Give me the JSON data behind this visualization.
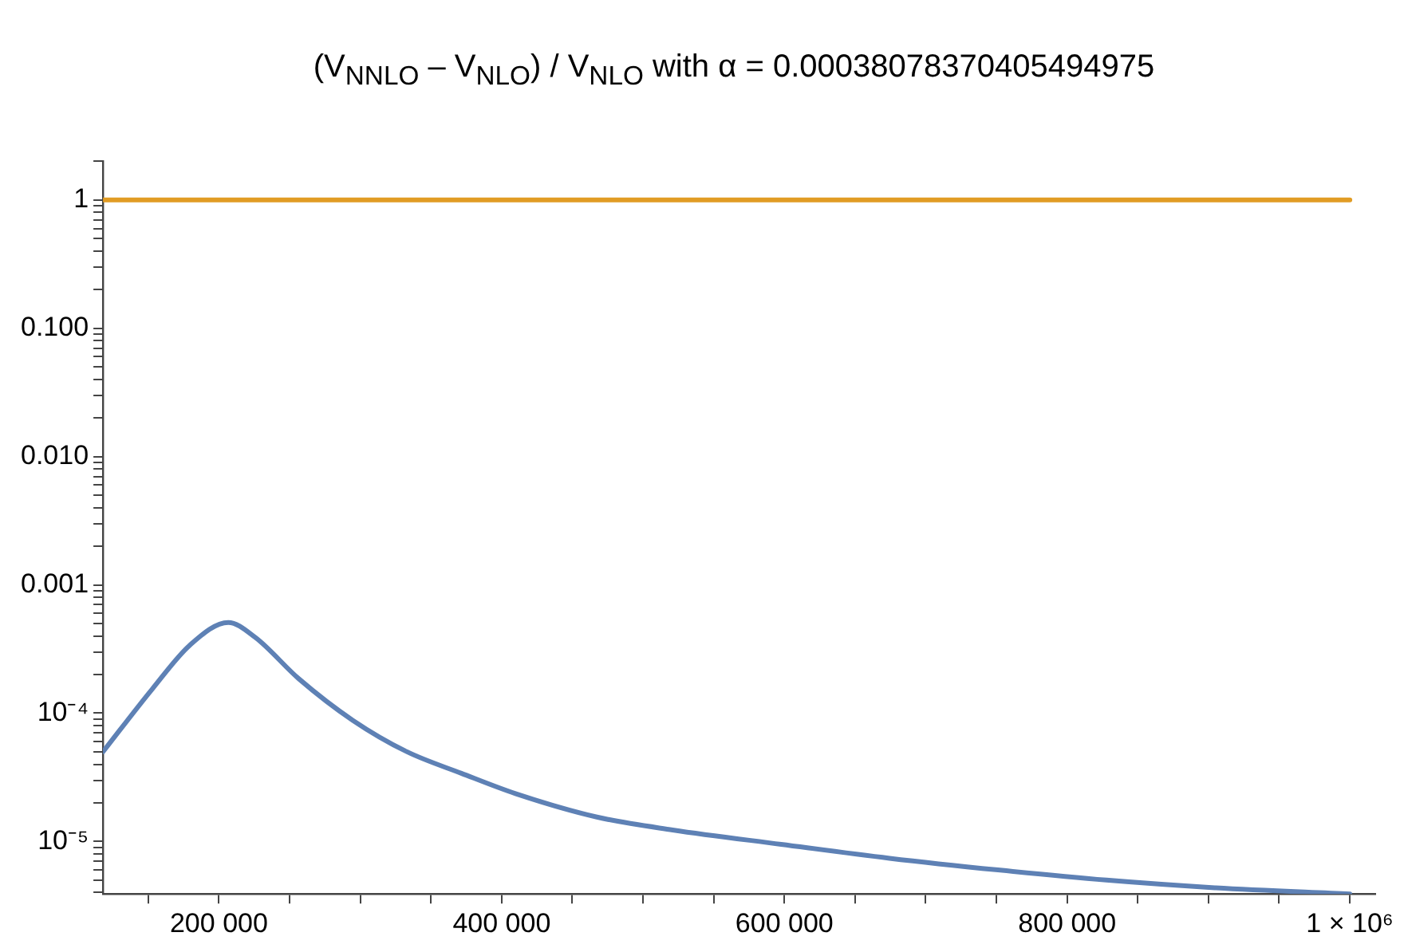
{
  "chart_data": {
    "type": "line",
    "title": "(V$_{NNLO}$ – V$_{NLO}$) / V$_{NLO}$ with α = 0.00038078370405494975",
    "log": "y",
    "grid": false,
    "legend": false,
    "marker": "none",
    "line_style": "solid",
    "xlim": [
      118000,
      1018000
    ],
    "ylim": [
      3.9e-06,
      2
    ],
    "xticks": [
      {
        "value": 150000,
        "label": null
      },
      {
        "value": 200000,
        "label": "200 000"
      },
      {
        "value": 250000,
        "label": null
      },
      {
        "value": 300000,
        "label": null
      },
      {
        "value": 350000,
        "label": null
      },
      {
        "value": 400000,
        "label": "400 000"
      },
      {
        "value": 450000,
        "label": null
      },
      {
        "value": 500000,
        "label": null
      },
      {
        "value": 550000,
        "label": null
      },
      {
        "value": 600000,
        "label": "600 000"
      },
      {
        "value": 650000,
        "label": null
      },
      {
        "value": 700000,
        "label": null
      },
      {
        "value": 750000,
        "label": null
      },
      {
        "value": 800000,
        "label": "800 000"
      },
      {
        "value": 850000,
        "label": null
      },
      {
        "value": 900000,
        "label": null
      },
      {
        "value": 950000,
        "label": null
      },
      {
        "value": 1000000,
        "label": "1 × 10⁶"
      }
    ],
    "yticks": [
      {
        "value": 4e-06,
        "label": null
      },
      {
        "value": 5e-06,
        "label": null
      },
      {
        "value": 6e-06,
        "label": null
      },
      {
        "value": 7e-06,
        "label": null
      },
      {
        "value": 8e-06,
        "label": null
      },
      {
        "value": 9e-06,
        "label": null
      },
      {
        "value": 1e-05,
        "label": "10⁻⁵"
      },
      {
        "value": 2e-05,
        "label": null
      },
      {
        "value": 3e-05,
        "label": null
      },
      {
        "value": 4e-05,
        "label": null
      },
      {
        "value": 5e-05,
        "label": null
      },
      {
        "value": 6e-05,
        "label": null
      },
      {
        "value": 7e-05,
        "label": null
      },
      {
        "value": 8e-05,
        "label": null
      },
      {
        "value": 9e-05,
        "label": null
      },
      {
        "value": 0.0001,
        "label": "10⁻⁴"
      },
      {
        "value": 0.0002,
        "label": null
      },
      {
        "value": 0.0003,
        "label": null
      },
      {
        "value": 0.0004,
        "label": null
      },
      {
        "value": 0.0005,
        "label": null
      },
      {
        "value": 0.0006,
        "label": null
      },
      {
        "value": 0.0007,
        "label": null
      },
      {
        "value": 0.0008,
        "label": null
      },
      {
        "value": 0.0009,
        "label": null
      },
      {
        "value": 0.001,
        "label": "0.001"
      },
      {
        "value": 0.002,
        "label": null
      },
      {
        "value": 0.003,
        "label": null
      },
      {
        "value": 0.004,
        "label": null
      },
      {
        "value": 0.005,
        "label": null
      },
      {
        "value": 0.006,
        "label": null
      },
      {
        "value": 0.007,
        "label": null
      },
      {
        "value": 0.008,
        "label": null
      },
      {
        "value": 0.009,
        "label": null
      },
      {
        "value": 0.01,
        "label": "0.010"
      },
      {
        "value": 0.02,
        "label": null
      },
      {
        "value": 0.03,
        "label": null
      },
      {
        "value": 0.04,
        "label": null
      },
      {
        "value": 0.05,
        "label": null
      },
      {
        "value": 0.06,
        "label": null
      },
      {
        "value": 0.07,
        "label": null
      },
      {
        "value": 0.08,
        "label": null
      },
      {
        "value": 0.09,
        "label": null
      },
      {
        "value": 0.1,
        "label": "0.100"
      },
      {
        "value": 0.2,
        "label": null
      },
      {
        "value": 0.3,
        "label": null
      },
      {
        "value": 0.4,
        "label": null
      },
      {
        "value": 0.5,
        "label": null
      },
      {
        "value": 0.6,
        "label": null
      },
      {
        "value": 0.7,
        "label": null
      },
      {
        "value": 0.8,
        "label": null
      },
      {
        "value": 0.9,
        "label": null
      },
      {
        "value": 1,
        "label": "1"
      },
      {
        "value": 2,
        "label": null
      }
    ],
    "series": [
      {
        "color": "#e19c24",
        "x": [
          118000,
          1000000
        ],
        "values": [
          1,
          1
        ]
      },
      {
        "color": "#5e81b5",
        "x": [
          118000,
          152800,
          179600,
          206600,
          225700,
          256400,
          294700,
          333100,
          371500,
          409800,
          467400,
          521000,
          597800,
          674400,
          751100,
          827800,
          904500,
          1000000
        ],
        "values": [
          5e-05,
          0.000154,
          0.00034,
          0.00051,
          0.00039,
          0.000186,
          8.8e-05,
          5e-05,
          3.4e-05,
          2.36e-05,
          1.55e-05,
          1.23e-05,
          9.5e-06,
          7.4e-06,
          6e-06,
          5e-06,
          4.36e-06,
          3.9e-06
        ]
      }
    ]
  }
}
